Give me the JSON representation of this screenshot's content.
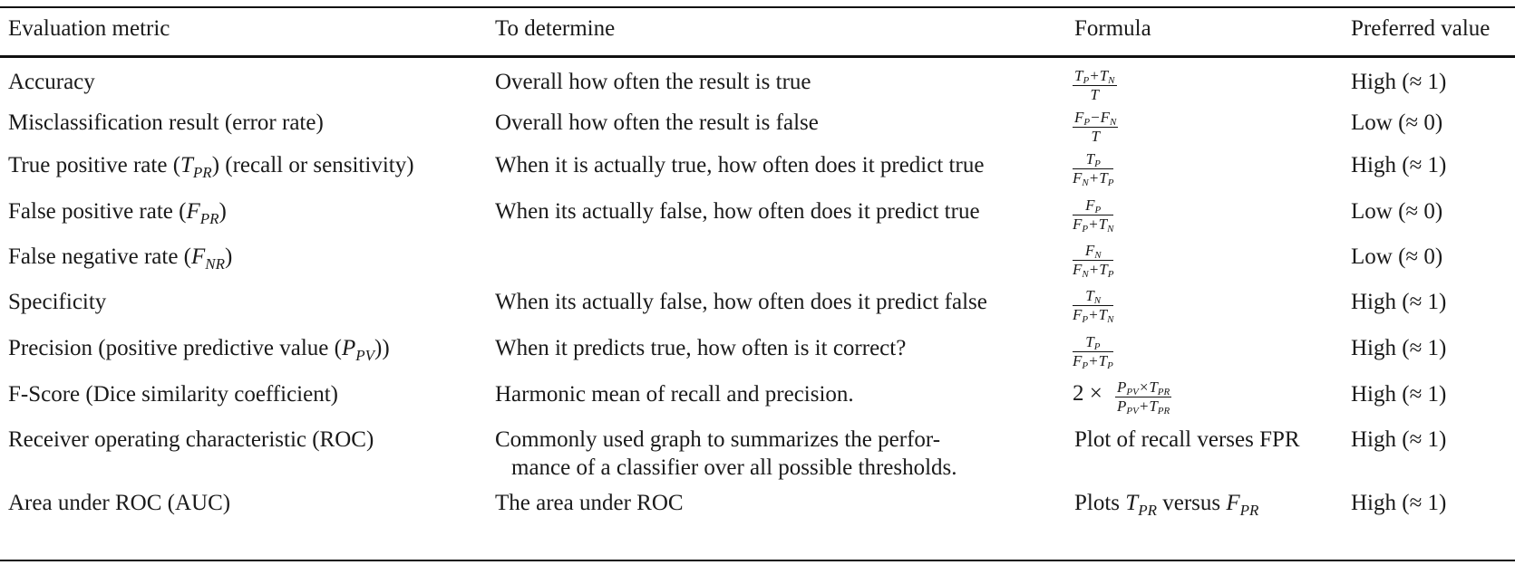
{
  "headers": [
    "Evaluation metric",
    "To determine",
    "Formula",
    "Preferred value"
  ],
  "rows": [
    {
      "metric": "Accuracy",
      "determine": "Overall how often the result is true",
      "formula": {
        "num": "T_P+T_N",
        "den": "T"
      },
      "preferred": "High (≈ 1)"
    },
    {
      "metric": "Misclassification result (error rate)",
      "determine": "Overall how often the result is false",
      "formula": {
        "num": "F_P−F_N",
        "den": "T"
      },
      "preferred": "Low (≈ 0)"
    },
    {
      "metric_pre": "True positive rate (",
      "metric_sym": "T",
      "metric_sub": "PR",
      "metric_post": ") (recall or sensitivity)",
      "determine": "When it is actually true, how often does it predict true",
      "formula": {
        "num": "T_P",
        "den": "F_N+T_P"
      },
      "preferred": "High (≈ 1)"
    },
    {
      "metric_pre": "False positive rate (",
      "metric_sym": "F",
      "metric_sub": "PR",
      "metric_post": ")",
      "determine": "When its actually false, how often does it predict true",
      "formula": {
        "num": "F_P",
        "den": "F_P+T_N"
      },
      "preferred": "Low (≈ 0)"
    },
    {
      "metric_pre": "False negative rate (",
      "metric_sym": "F",
      "metric_sub": "NR",
      "metric_post": ")",
      "determine": "",
      "formula": {
        "num": "F_N",
        "den": "F_N+T_P"
      },
      "preferred": "Low (≈ 0)"
    },
    {
      "metric": "Specificity",
      "determine": "When its actually false, how often does it predict false",
      "formula": {
        "num": "T_N",
        "den": "F_P+T_N"
      },
      "preferred": "High (≈ 1)"
    },
    {
      "metric_pre": "Precision (positive predictive value (",
      "metric_sym": "P",
      "metric_sub": "PV",
      "metric_post": "))",
      "determine": "When it predicts true, how often is it correct?",
      "formula": {
        "num": "T_P",
        "den": "F_P+T_P"
      },
      "preferred": "High (≈ 1)"
    },
    {
      "metric": "F-Score (Dice similarity coefficient)",
      "determine": "Harmonic mean of recall and precision.",
      "formula": {
        "prefix": "2 ×",
        "num": "P_PV×T_PR",
        "den": "P_PV+T_PR"
      },
      "preferred": "High (≈ 1)"
    },
    {
      "metric": "Receiver operating characteristic (ROC)",
      "determine_line1": "Commonly used graph to summarizes the perfor-",
      "determine_line2": "mance of a classifier over all possible thresholds.",
      "formula_text": "Plot of recall verses FPR",
      "preferred": "High (≈ 1)"
    },
    {
      "metric": "Area under ROC (AUC)",
      "determine": "The area under ROC",
      "formula_pre": "Plots ",
      "formula_sym1": "T",
      "formula_sub1": "PR",
      "formula_mid": " versus ",
      "formula_sym2": "F",
      "formula_sub2": "PR",
      "preferred": "High (≈ 1)"
    }
  ]
}
